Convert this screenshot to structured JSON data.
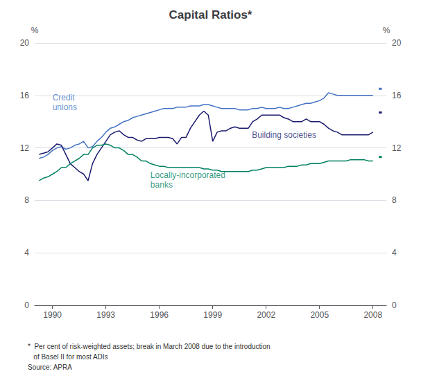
{
  "chart_data": {
    "type": "line",
    "title": "Capital Ratios*",
    "footnotes": [
      "*  Per cent of risk-weighted assets; break in March 2008 due to the introduction",
      "   of Basel II for most ADIs",
      "Source: APRA"
    ],
    "ylabel": "%",
    "y2label": "%",
    "xlim": [
      1989.0,
      2008.75
    ],
    "xticks": [
      1990,
      1993,
      1996,
      1999,
      2002,
      2005,
      2008
    ],
    "ylim": [
      0,
      20
    ],
    "yticks": [
      0,
      4,
      8,
      12,
      16,
      20
    ],
    "y2lim": [
      0,
      20
    ],
    "y2ticks": [
      0,
      4,
      8,
      12,
      16,
      20
    ],
    "grid": true,
    "annotations": [
      {
        "text": "Credit\nunions",
        "x": 1990.0,
        "y": 14.7,
        "color": "#4472C4"
      },
      {
        "text": "Building societies",
        "x": 2001.2,
        "y": 12.6,
        "color": "#1a1a6e"
      },
      {
        "text": "Locally-incorporated\nbanks",
        "x": 1995.5,
        "y": 8.8,
        "color": "#008060"
      }
    ],
    "series": [
      {
        "color": "#4472C4",
        "x": [
          1989.25,
          1989.5,
          1989.75,
          1990.0,
          1990.25,
          1990.5,
          1990.75,
          1991.0,
          1991.25,
          1991.5,
          1991.75,
          1992.0,
          1992.25,
          1992.5,
          1992.75,
          1993.0,
          1993.25,
          1993.5,
          1993.75,
          1994.0,
          1994.25,
          1994.5,
          1994.75,
          1995.0,
          1995.25,
          1995.5,
          1995.75,
          1996.0,
          1996.25,
          1996.5,
          1996.75,
          1997.0,
          1997.25,
          1997.5,
          1997.75,
          1998.0,
          1998.25,
          1998.5,
          1998.75,
          1999.0,
          1999.25,
          1999.5,
          1999.75,
          2000.0,
          2000.25,
          2000.5,
          2000.75,
          2001.0,
          2001.25,
          2001.5,
          2001.75,
          2002.0,
          2002.25,
          2002.5,
          2002.75,
          2003.0,
          2003.25,
          2003.5,
          2003.75,
          2004.0,
          2004.25,
          2004.5,
          2004.75,
          2005.0,
          2005.25,
          2005.5,
          2005.75,
          2006.0,
          2006.25,
          2006.5,
          2006.75,
          2007.0,
          2007.25,
          2007.5,
          2007.75,
          2008.0
        ],
        "values": [
          11.2,
          11.3,
          11.5,
          11.8,
          12.0,
          12.1,
          11.9,
          12.0,
          12.2,
          12.3,
          12.5,
          12.0,
          12.1,
          12.5,
          12.8,
          13.2,
          13.5,
          13.6,
          13.8,
          14.0,
          14.1,
          14.3,
          14.4,
          14.5,
          14.6,
          14.7,
          14.8,
          14.9,
          15.0,
          15.0,
          15.0,
          15.1,
          15.1,
          15.1,
          15.2,
          15.2,
          15.2,
          15.3,
          15.3,
          15.2,
          15.1,
          15.0,
          15.0,
          15.0,
          15.0,
          14.9,
          14.9,
          14.9,
          15.0,
          15.0,
          15.1,
          15.0,
          15.0,
          15.0,
          15.1,
          15.0,
          15.0,
          15.1,
          15.2,
          15.3,
          15.4,
          15.4,
          15.5,
          15.6,
          15.8,
          16.2,
          16.1,
          16.0,
          16.0,
          16.0,
          16.0,
          16.0,
          16.0,
          16.0,
          16.0,
          16.0
        ],
        "post_x": [
          2008.33,
          2008.5
        ],
        "post_values": [
          16.5,
          16.5
        ]
      },
      {
        "color": "#1a1a6e",
        "x": [
          1989.25,
          1989.5,
          1989.75,
          1990.0,
          1990.25,
          1990.5,
          1990.75,
          1991.0,
          1991.25,
          1991.5,
          1991.75,
          1992.0,
          1992.25,
          1992.5,
          1992.75,
          1993.0,
          1993.25,
          1993.5,
          1993.75,
          1994.0,
          1994.25,
          1994.5,
          1994.75,
          1995.0,
          1995.25,
          1995.5,
          1995.75,
          1996.0,
          1996.25,
          1996.5,
          1996.75,
          1997.0,
          1997.25,
          1997.5,
          1997.75,
          1998.0,
          1998.25,
          1998.5,
          1998.75,
          1999.0,
          1999.25,
          1999.5,
          1999.75,
          2000.0,
          2000.25,
          2000.5,
          2000.75,
          2001.0,
          2001.25,
          2001.5,
          2001.75,
          2002.0,
          2002.25,
          2002.5,
          2002.75,
          2003.0,
          2003.25,
          2003.5,
          2003.75,
          2004.0,
          2004.25,
          2004.5,
          2004.75,
          2005.0,
          2005.25,
          2005.5,
          2005.75,
          2006.0,
          2006.25,
          2006.5,
          2006.75,
          2007.0,
          2007.25,
          2007.5,
          2007.75,
          2008.0
        ],
        "values": [
          11.5,
          11.6,
          11.7,
          12.0,
          12.3,
          12.2,
          11.5,
          10.8,
          10.5,
          10.2,
          10.0,
          9.5,
          10.8,
          11.5,
          12.0,
          12.5,
          13.0,
          13.2,
          13.3,
          13.0,
          12.8,
          12.8,
          12.6,
          12.5,
          12.7,
          12.7,
          12.7,
          12.8,
          12.8,
          12.8,
          12.7,
          12.3,
          12.8,
          12.8,
          13.5,
          14.0,
          14.5,
          14.8,
          14.5,
          12.5,
          13.2,
          13.3,
          13.3,
          13.5,
          13.6,
          13.5,
          13.5,
          13.5,
          14.0,
          14.2,
          14.5,
          14.5,
          14.5,
          14.5,
          14.5,
          14.3,
          14.2,
          14.0,
          14.0,
          14.0,
          14.2,
          14.0,
          14.0,
          14.0,
          13.8,
          13.5,
          13.3,
          13.2,
          13.0,
          13.0,
          13.0,
          13.0,
          13.0,
          13.0,
          13.0,
          13.2
        ],
        "post_x": [
          2008.33,
          2008.5
        ],
        "post_values": [
          14.7,
          14.7
        ]
      },
      {
        "color": "#008060",
        "x": [
          1989.25,
          1989.5,
          1989.75,
          1990.0,
          1990.25,
          1990.5,
          1990.75,
          1991.0,
          1991.25,
          1991.5,
          1991.75,
          1992.0,
          1992.25,
          1992.5,
          1992.75,
          1993.0,
          1993.25,
          1993.5,
          1993.75,
          1994.0,
          1994.25,
          1994.5,
          1994.75,
          1995.0,
          1995.25,
          1995.5,
          1995.75,
          1996.0,
          1996.25,
          1996.5,
          1996.75,
          1997.0,
          1997.25,
          1997.5,
          1997.75,
          1998.0,
          1998.25,
          1998.5,
          1998.75,
          1999.0,
          1999.25,
          1999.5,
          1999.75,
          2000.0,
          2000.25,
          2000.5,
          2000.75,
          2001.0,
          2001.25,
          2001.5,
          2001.75,
          2002.0,
          2002.25,
          2002.5,
          2002.75,
          2003.0,
          2003.25,
          2003.5,
          2003.75,
          2004.0,
          2004.25,
          2004.5,
          2004.75,
          2005.0,
          2005.25,
          2005.5,
          2005.75,
          2006.0,
          2006.25,
          2006.5,
          2006.75,
          2007.0,
          2007.25,
          2007.5,
          2007.75,
          2008.0
        ],
        "values": [
          9.5,
          9.7,
          9.8,
          10.0,
          10.2,
          10.5,
          10.5,
          10.8,
          11.0,
          11.2,
          11.5,
          11.5,
          12.0,
          12.2,
          12.2,
          12.3,
          12.2,
          12.0,
          12.0,
          11.8,
          11.5,
          11.5,
          11.3,
          11.0,
          11.0,
          10.8,
          10.7,
          10.6,
          10.6,
          10.5,
          10.5,
          10.5,
          10.5,
          10.5,
          10.5,
          10.5,
          10.5,
          10.4,
          10.4,
          10.3,
          10.3,
          10.2,
          10.2,
          10.2,
          10.2,
          10.2,
          10.2,
          10.2,
          10.3,
          10.3,
          10.4,
          10.5,
          10.5,
          10.5,
          10.5,
          10.5,
          10.6,
          10.6,
          10.6,
          10.7,
          10.7,
          10.8,
          10.8,
          10.8,
          10.9,
          11.0,
          11.0,
          11.0,
          11.0,
          11.0,
          11.1,
          11.1,
          11.1,
          11.1,
          11.0,
          11.0
        ],
        "post_x": [
          2008.33,
          2008.5
        ],
        "post_values": [
          11.3,
          11.3
        ]
      }
    ]
  }
}
